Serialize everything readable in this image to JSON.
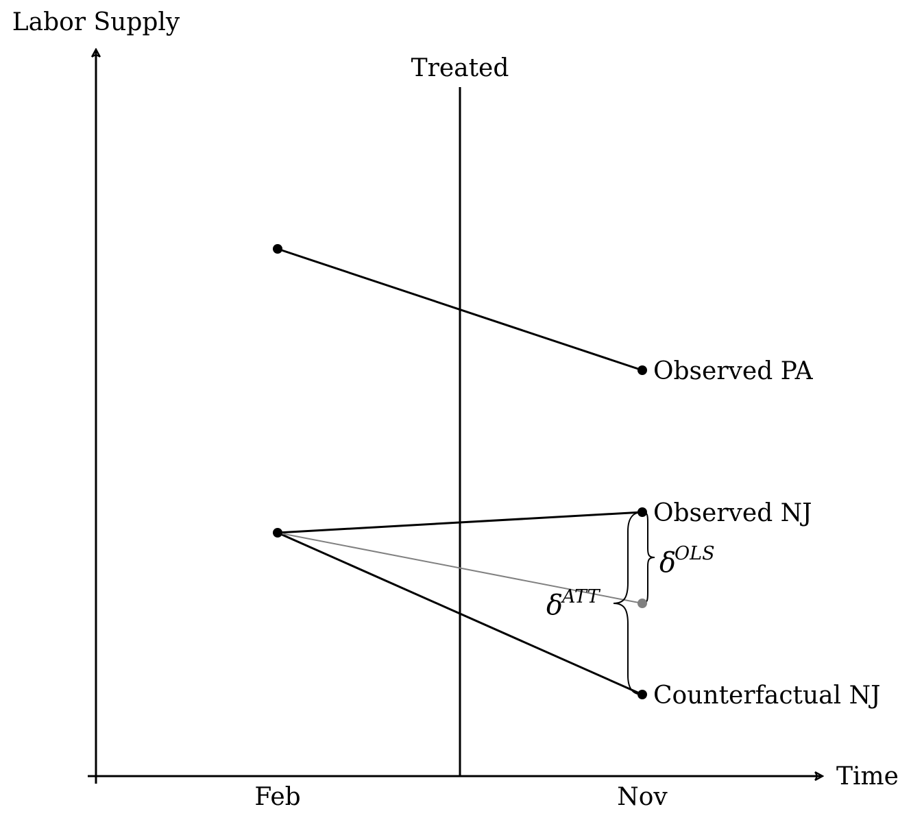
{
  "diagram": {
    "y_axis_label": "Labor Supply",
    "x_axis_label": "Time",
    "x_ticks": [
      "Feb",
      "Nov"
    ],
    "treatment_line_label": "Treated",
    "points": {
      "pa_feb": "",
      "pa_nov": "Observed PA",
      "nj_feb": "",
      "nj_nov_observed": "Observed NJ",
      "nj_nov_counterfactual": "Counterfactual NJ"
    },
    "braces": {
      "ols": {
        "symbol": "δ",
        "superscript": "OLS"
      },
      "att": {
        "symbol": "δ",
        "superscript": "ATT"
      }
    },
    "colors": {
      "main": "#000000",
      "reference_line": "#808080"
    }
  }
}
